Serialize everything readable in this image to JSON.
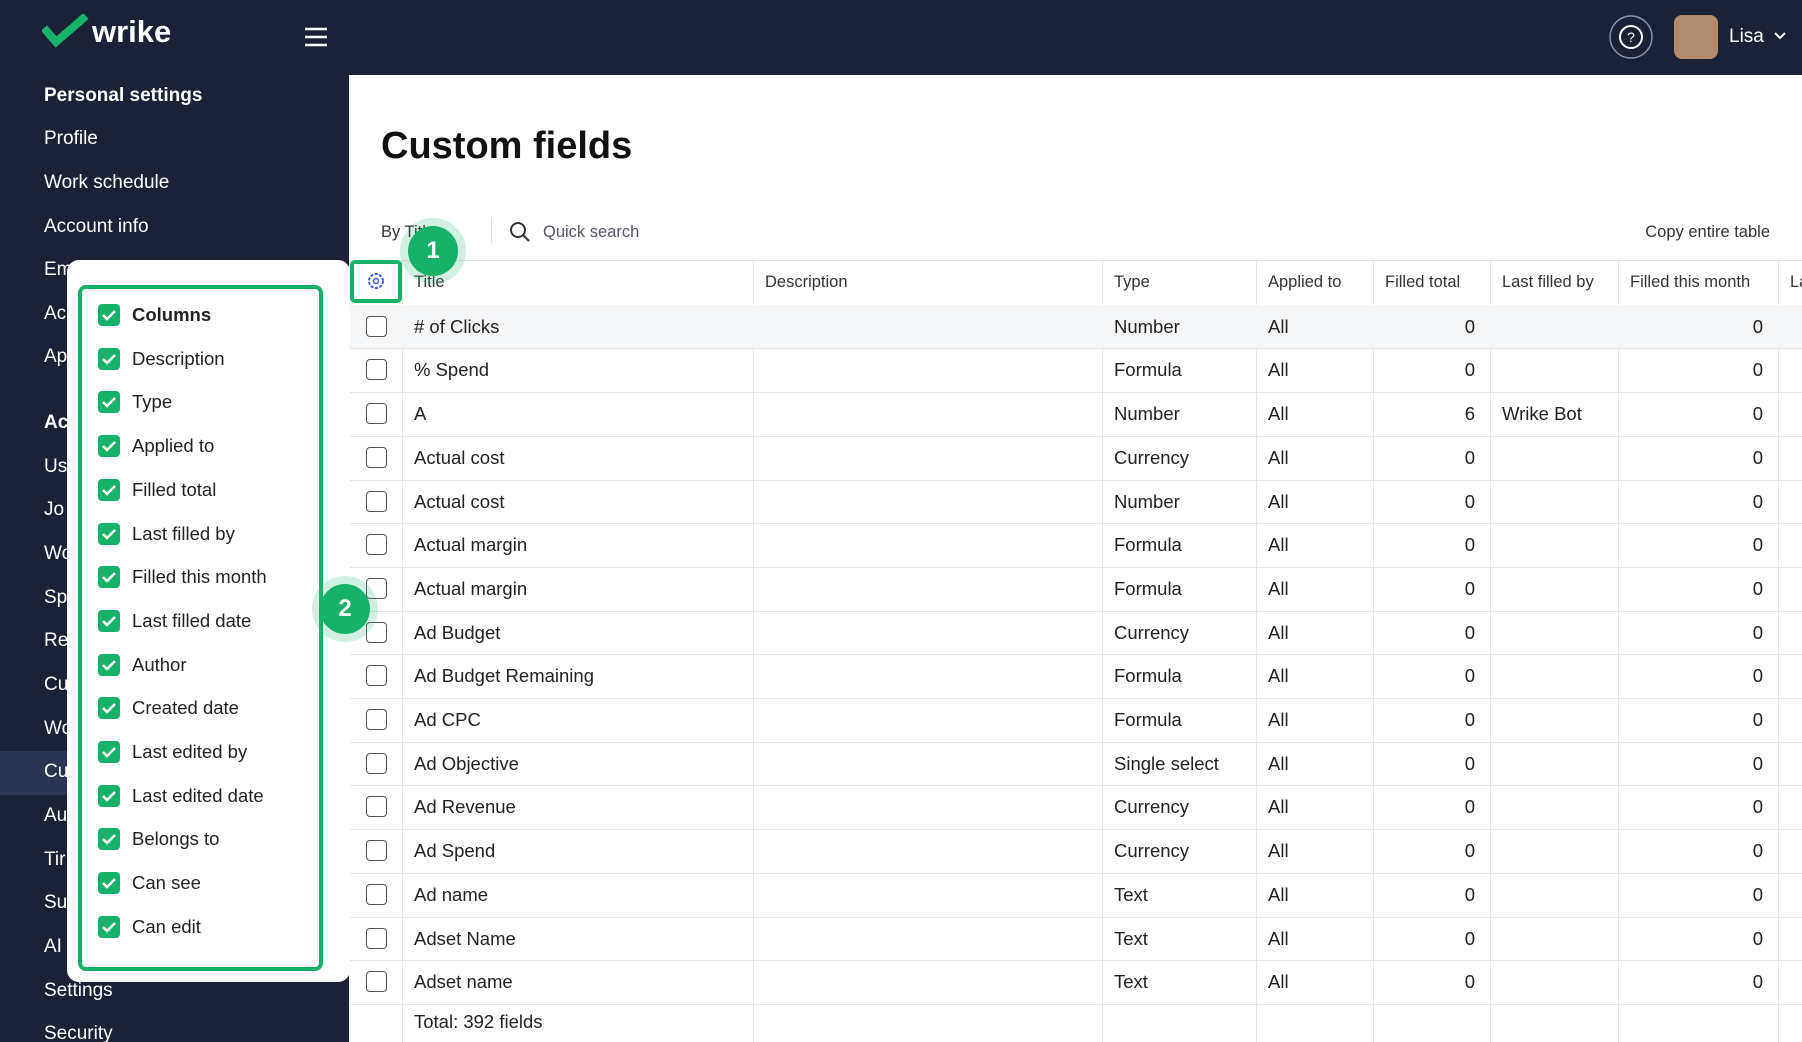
{
  "header": {
    "brand": "wrike",
    "user": "Lisa"
  },
  "sidebar": {
    "section": "Personal settings",
    "items": [
      "Profile",
      "Work schedule",
      "Account info",
      "Em",
      "Ac",
      "Ap"
    ],
    "section2": "Ac",
    "items2": [
      "Us",
      "Jo",
      "Wo",
      "Sp",
      "Re",
      "Cu",
      "Wo",
      "Cu",
      "Au",
      "Tir",
      "Su",
      "AI",
      "Settings",
      "Security"
    ]
  },
  "main": {
    "title": "Custom fields",
    "sort": "By Title",
    "search": "Quick search",
    "copy": "Copy entire table",
    "table": {
      "columns": [
        "Title",
        "Description",
        "Type",
        "Applied to",
        "Filled total",
        "Last filled by",
        "Filled this month",
        "La"
      ],
      "rows": [
        {
          "title": "# of Clicks",
          "type": "Number",
          "applied_to": "All",
          "filled_total": 0,
          "filled_this_month": 0
        },
        {
          "title": "% Spend",
          "type": "Formula",
          "applied_to": "All",
          "filled_total": 0,
          "filled_this_month": 0
        },
        {
          "title": "A",
          "type": "Number",
          "applied_to": "All",
          "filled_total": 6,
          "last_filled_by": "Wrike Bot",
          "filled_this_month": 0
        },
        {
          "title": "Actual cost",
          "type": "Currency",
          "applied_to": "All",
          "filled_total": 0,
          "filled_this_month": 0
        },
        {
          "title": "Actual cost",
          "type": "Number",
          "applied_to": "All",
          "filled_total": 0,
          "filled_this_month": 0
        },
        {
          "title": "Actual margin",
          "type": "Formula",
          "applied_to": "All",
          "filled_total": 0,
          "filled_this_month": 0
        },
        {
          "title": "Actual margin",
          "type": "Formula",
          "applied_to": "All",
          "filled_total": 0,
          "filled_this_month": 0
        },
        {
          "title": "Ad Budget",
          "type": "Currency",
          "applied_to": "All",
          "filled_total": 0,
          "filled_this_month": 0
        },
        {
          "title": "Ad Budget Remaining",
          "type": "Formula",
          "applied_to": "All",
          "filled_total": 0,
          "filled_this_month": 0
        },
        {
          "title": "Ad CPC",
          "type": "Formula",
          "applied_to": "All",
          "filled_total": 0,
          "filled_this_month": 0
        },
        {
          "title": "Ad Objective",
          "type": "Single select",
          "applied_to": "All",
          "filled_total": 0,
          "filled_this_month": 0
        },
        {
          "title": "Ad Revenue",
          "type": "Currency",
          "applied_to": "All",
          "filled_total": 0,
          "filled_this_month": 0
        },
        {
          "title": "Ad Spend",
          "type": "Currency",
          "applied_to": "All",
          "filled_total": 0,
          "filled_this_month": 0
        },
        {
          "title": "Ad name",
          "type": "Text",
          "applied_to": "All",
          "filled_total": 0,
          "filled_this_month": 0
        },
        {
          "title": "Adset Name",
          "type": "Text",
          "applied_to": "All",
          "filled_total": 0,
          "filled_this_month": 0
        },
        {
          "title": "Adset name",
          "type": "Text",
          "applied_to": "All",
          "filled_total": 0,
          "filled_this_month": 0
        }
      ],
      "footer": "Total: 392 fields"
    }
  },
  "popup": {
    "heading": "Columns",
    "items": [
      "Description",
      "Type",
      "Applied to",
      "Filled total",
      "Last filled by",
      "Filled this month",
      "Last filled date",
      "Author",
      "Created date",
      "Last edited by",
      "Last edited date",
      "Belongs to",
      "Can see",
      "Can edit"
    ]
  },
  "badges": [
    "1",
    "2"
  ]
}
